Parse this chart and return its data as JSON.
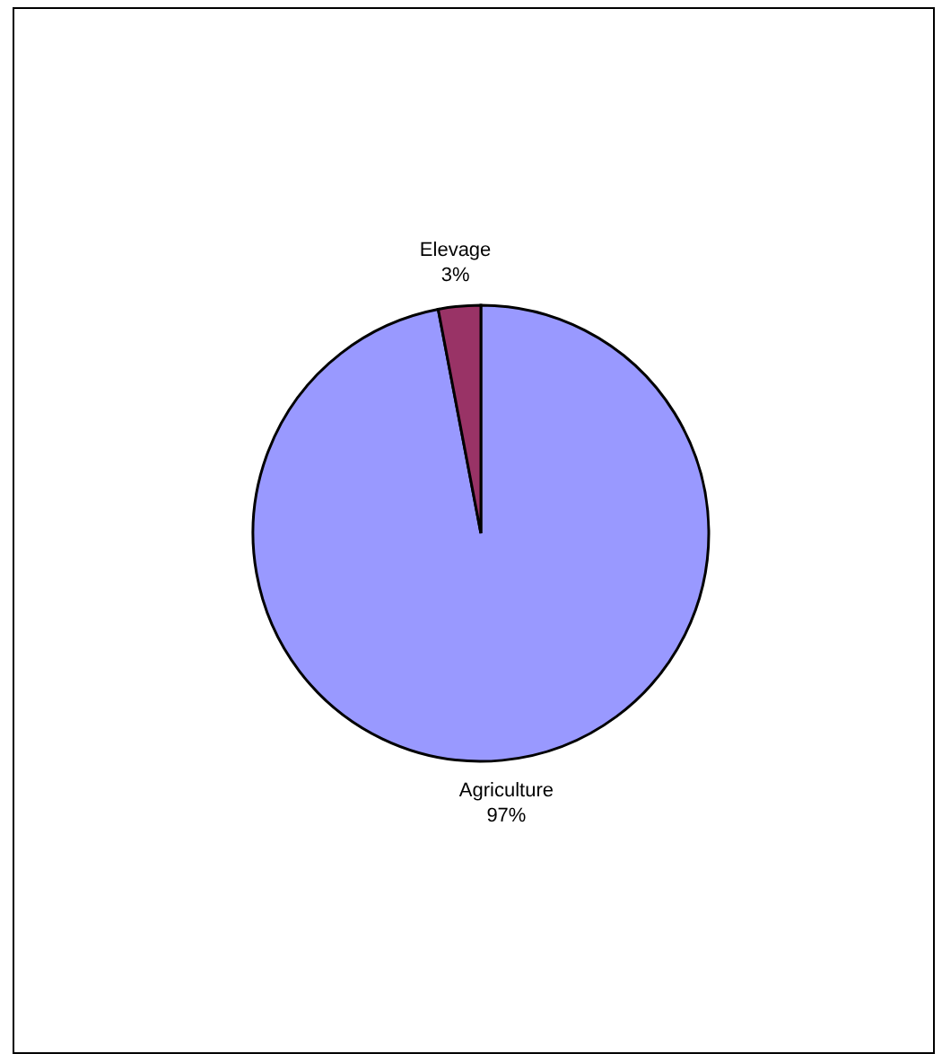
{
  "chart_data": {
    "type": "pie",
    "categories": [
      "Agriculture",
      "Elevage"
    ],
    "values": [
      97,
      3
    ],
    "colors": [
      "#9999ff",
      "#993366"
    ],
    "value_labels": [
      "97%",
      "3%"
    ]
  }
}
